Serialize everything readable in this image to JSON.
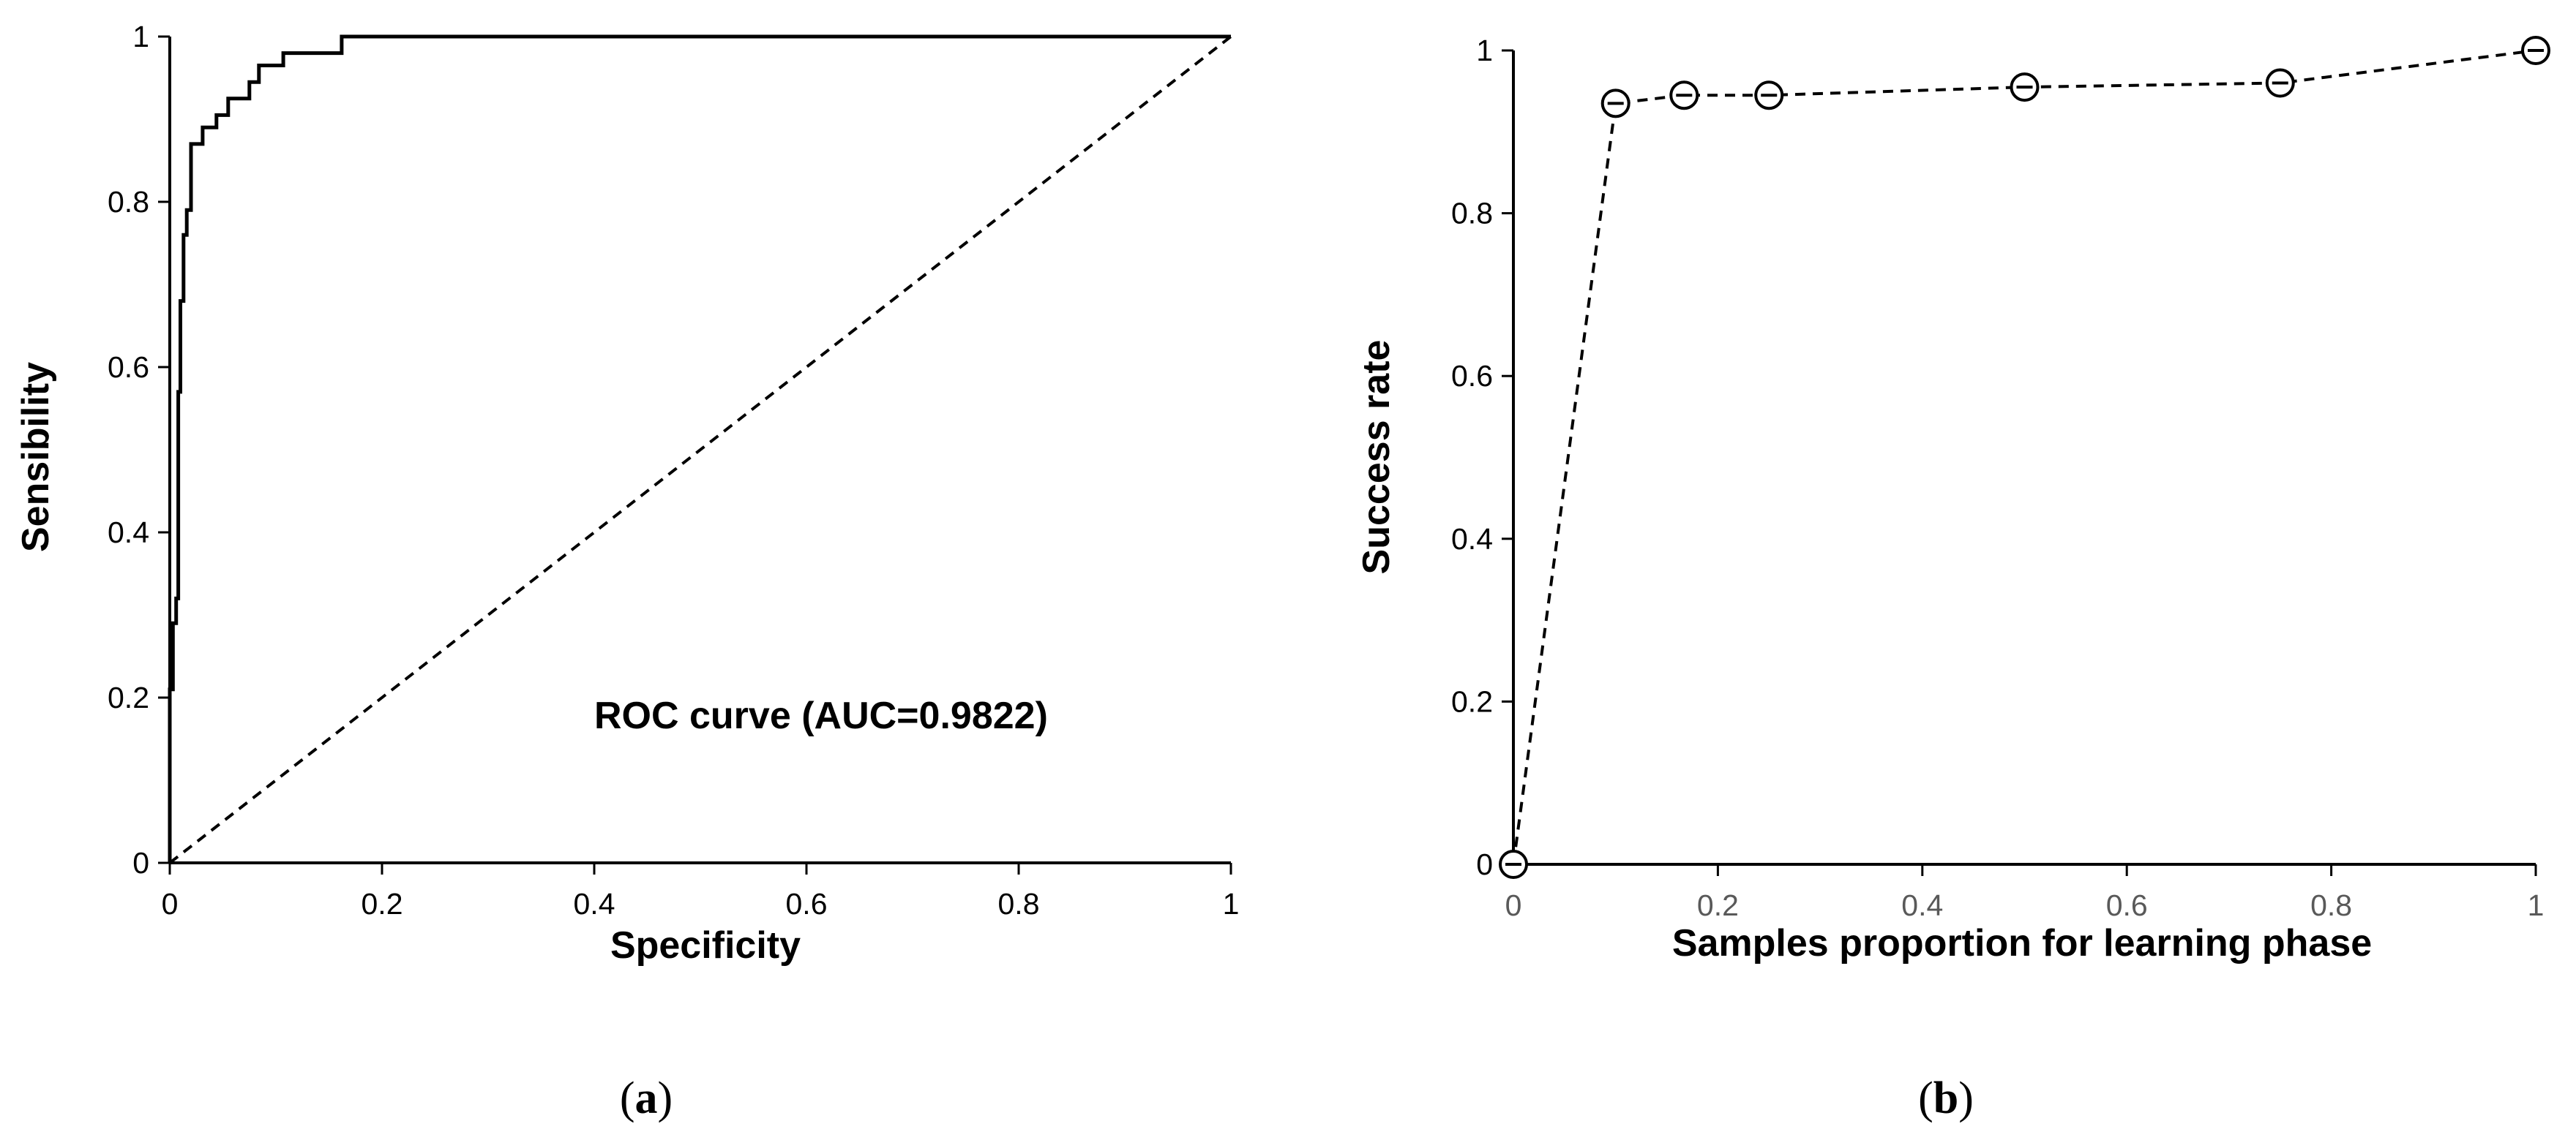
{
  "chart_data": [
    {
      "panel": "(a)",
      "panel_letter": "a",
      "type": "line",
      "title": "",
      "xlabel": "Specificity",
      "ylabel": "Sensibility",
      "xlim": [
        0,
        1
      ],
      "ylim": [
        0,
        1
      ],
      "x_ticks": [
        "0",
        "0.2",
        "0.4",
        "0.6",
        "0.8",
        "1"
      ],
      "y_ticks": [
        "0",
        "0.2",
        "0.4",
        "0.6",
        "0.8",
        "1"
      ],
      "grid": false,
      "legend": "none",
      "annotation": "ROC curve (AUC=0.9822)",
      "series": [
        {
          "style": "solid-step",
          "x": [
            0,
            0,
            0.003,
            0.003,
            0.006,
            0.006,
            0.008,
            0.008,
            0.01,
            0.01,
            0.013,
            0.013,
            0.016,
            0.016,
            0.02,
            0.02,
            0.031,
            0.031,
            0.044,
            0.044,
            0.055,
            0.055,
            0.075,
            0.075,
            0.084,
            0.084,
            0.107,
            0.107,
            0.162,
            0.162,
            1
          ],
          "y": [
            0,
            0.21,
            0.21,
            0.29,
            0.29,
            0.32,
            0.32,
            0.57,
            0.57,
            0.68,
            0.68,
            0.76,
            0.76,
            0.79,
            0.79,
            0.87,
            0.87,
            0.89,
            0.89,
            0.905,
            0.905,
            0.925,
            0.925,
            0.945,
            0.945,
            0.965,
            0.965,
            0.98,
            0.98,
            1.0,
            1.0
          ]
        },
        {
          "style": "dashed",
          "x": [
            0,
            1
          ],
          "y": [
            0,
            1
          ]
        }
      ]
    },
    {
      "panel": "(b)",
      "panel_letter": "b",
      "type": "line",
      "title": "",
      "xlabel": "Samples proportion for learning phase",
      "ylabel": "Success rate",
      "xlim": [
        0,
        1
      ],
      "ylim": [
        0,
        1
      ],
      "x_ticks": [
        "0",
        "0.2",
        "0.4",
        "0.6",
        "0.8",
        "1"
      ],
      "y_ticks": [
        "0",
        "0.2",
        "0.4",
        "0.6",
        "0.8",
        "1"
      ],
      "grid": false,
      "legend": "none",
      "series": [
        {
          "style": "dashed-circle-markers",
          "x": [
            0,
            0.1,
            0.167,
            0.25,
            0.5,
            0.75,
            1.0
          ],
          "y": [
            0,
            0.935,
            0.945,
            0.945,
            0.955,
            0.96,
            1.0
          ]
        }
      ]
    }
  ]
}
